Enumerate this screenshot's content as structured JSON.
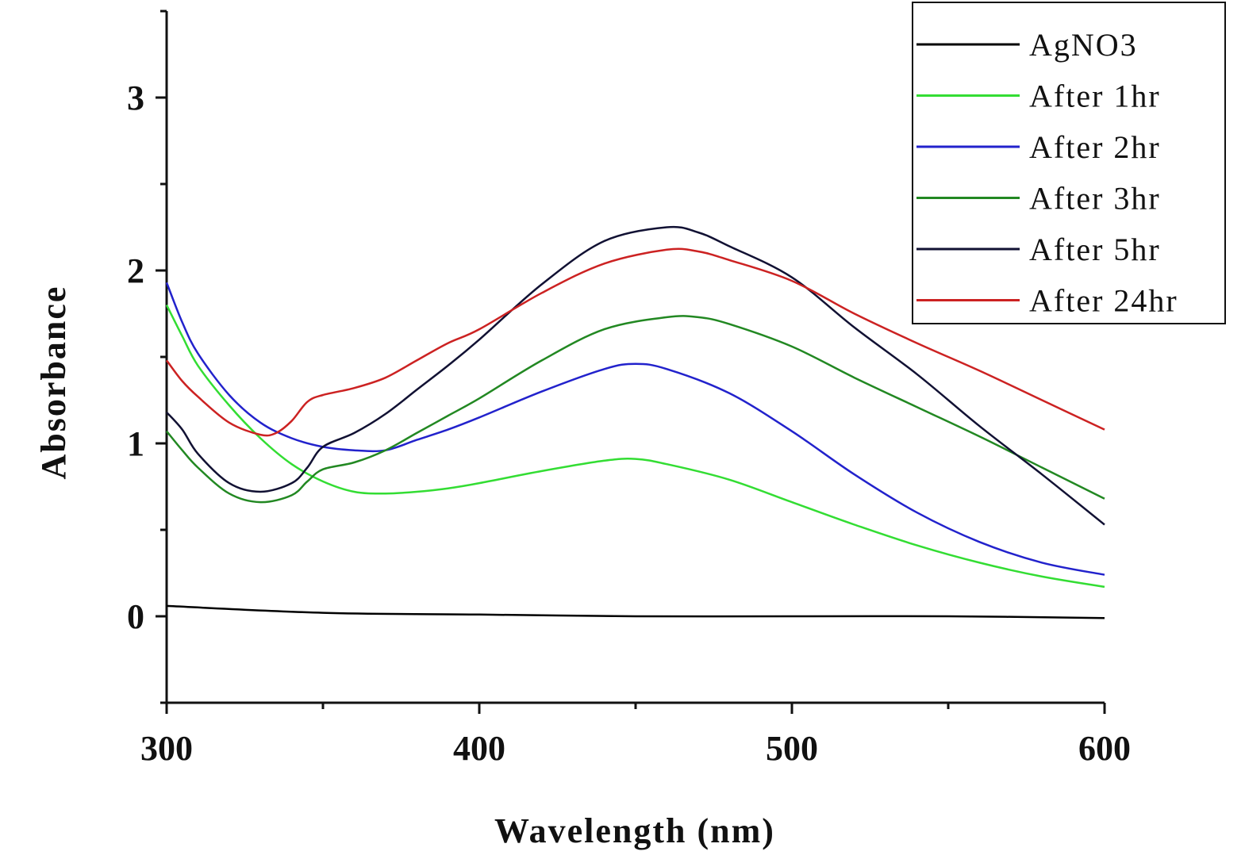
{
  "chart_data": {
    "type": "line",
    "xlabel": "Wavelength (nm)",
    "ylabel": "Absorbance",
    "xlim": [
      300,
      600
    ],
    "ylim": [
      -0.5,
      3.5
    ],
    "x_ticks": [
      "300",
      "400",
      "500",
      "600"
    ],
    "y_ticks": [
      "0",
      "1",
      "2",
      "3"
    ],
    "grid": false,
    "legend_position": "top-right",
    "series": [
      {
        "name": "AgNO3",
        "color": "#000000",
        "x": [
          300,
          350,
          400,
          450,
          500,
          550,
          600
        ],
        "y": [
          0.06,
          0.02,
          0.01,
          0.0,
          0.0,
          0.0,
          -0.01
        ]
      },
      {
        "name": "After 1hr",
        "color": "#33dd33",
        "x": [
          300,
          305,
          310,
          320,
          330,
          340,
          350,
          360,
          370,
          380,
          390,
          400,
          420,
          440,
          450,
          460,
          480,
          500,
          520,
          540,
          560,
          580,
          600
        ],
        "y": [
          1.8,
          1.62,
          1.45,
          1.22,
          1.03,
          0.88,
          0.78,
          0.72,
          0.71,
          0.72,
          0.74,
          0.77,
          0.84,
          0.9,
          0.91,
          0.88,
          0.79,
          0.66,
          0.53,
          0.41,
          0.31,
          0.23,
          0.17
        ]
      },
      {
        "name": "After 2hr",
        "color": "#2222cc",
        "x": [
          300,
          305,
          310,
          320,
          330,
          340,
          350,
          360,
          370,
          380,
          390,
          400,
          420,
          440,
          450,
          460,
          480,
          500,
          520,
          540,
          560,
          580,
          600
        ],
        "y": [
          1.93,
          1.7,
          1.52,
          1.28,
          1.12,
          1.03,
          0.98,
          0.96,
          0.96,
          1.02,
          1.08,
          1.15,
          1.3,
          1.43,
          1.46,
          1.43,
          1.29,
          1.07,
          0.82,
          0.6,
          0.43,
          0.31,
          0.24
        ]
      },
      {
        "name": "After 3hr",
        "color": "#228822",
        "x": [
          300,
          305,
          310,
          320,
          330,
          340,
          345,
          350,
          360,
          370,
          380,
          390,
          400,
          420,
          440,
          460,
          470,
          480,
          500,
          520,
          540,
          560,
          580,
          600
        ],
        "y": [
          1.07,
          0.96,
          0.86,
          0.71,
          0.66,
          0.7,
          0.78,
          0.85,
          0.89,
          0.96,
          1.06,
          1.16,
          1.26,
          1.48,
          1.66,
          1.73,
          1.73,
          1.69,
          1.56,
          1.38,
          1.21,
          1.04,
          0.86,
          0.68
        ]
      },
      {
        "name": "After 5hr",
        "color": "#111133",
        "x": [
          300,
          305,
          310,
          320,
          330,
          340,
          345,
          350,
          360,
          370,
          380,
          390,
          400,
          420,
          440,
          460,
          470,
          480,
          500,
          520,
          540,
          560,
          580,
          600
        ],
        "y": [
          1.18,
          1.08,
          0.94,
          0.77,
          0.72,
          0.77,
          0.86,
          0.98,
          1.06,
          1.17,
          1.31,
          1.45,
          1.6,
          1.92,
          2.17,
          2.25,
          2.22,
          2.14,
          1.96,
          1.67,
          1.4,
          1.1,
          0.82,
          0.53
        ]
      },
      {
        "name": "After 24hr",
        "color": "#cc2222",
        "x": [
          300,
          305,
          310,
          320,
          330,
          335,
          340,
          345,
          350,
          360,
          370,
          380,
          390,
          400,
          420,
          440,
          460,
          470,
          480,
          500,
          520,
          540,
          560,
          580,
          600
        ],
        "y": [
          1.48,
          1.36,
          1.27,
          1.12,
          1.05,
          1.06,
          1.13,
          1.24,
          1.28,
          1.32,
          1.38,
          1.48,
          1.58,
          1.66,
          1.87,
          2.04,
          2.12,
          2.11,
          2.06,
          1.94,
          1.75,
          1.58,
          1.42,
          1.25,
          1.08
        ]
      }
    ]
  }
}
